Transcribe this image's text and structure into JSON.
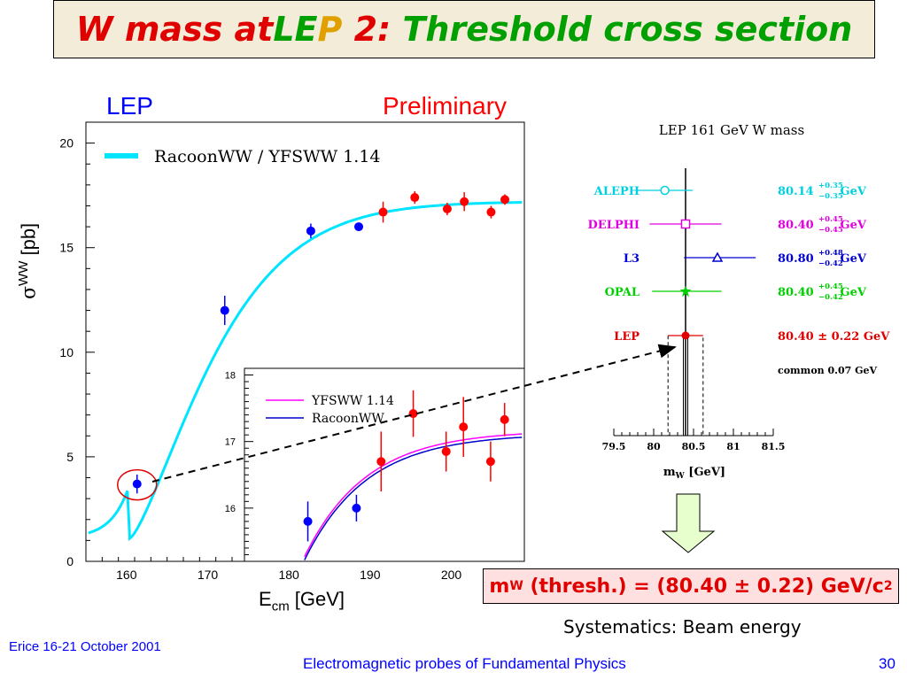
{
  "slide": {
    "title_parts": [
      {
        "text": "W mass at ",
        "color": "red"
      },
      {
        "text": "LE",
        "color": "green"
      },
      {
        "text": "P",
        "color": "orange"
      },
      {
        "text": " 2: ",
        "color": "red"
      },
      {
        "text": "Threshold cross section",
        "color": "green"
      }
    ],
    "label_lep": "LEP",
    "label_preliminary": "Preliminary",
    "result_lhs": "m",
    "result_sub": "W",
    "result_rhs": " (thresh.) = (80.40 ± 0.22) GeV/c",
    "result_sup": "2",
    "systematics": "Systematics: Beam energy",
    "footer_left": "Erice 16-21 October 2001",
    "footer_mid": "Electromagnetic probes of Fundamental Physics",
    "footer_right": "30"
  },
  "chart_data": [
    {
      "type": "scatter",
      "name": "main-cross-section",
      "xlabel_main": "E",
      "xlabel_sub": "cm",
      "xlabel_unit": " [GeV]",
      "ylabel_main": "σ",
      "ylabel_sup": "WW",
      "ylabel_unit": " [pb]",
      "xlim": [
        155,
        209
      ],
      "ylim": [
        0,
        21
      ],
      "x_ticks": [
        160,
        170,
        180,
        190,
        200
      ],
      "y_ticks": [
        0,
        5,
        10,
        15,
        20
      ],
      "legend_label": "RacoonWW / YFSWW 1.14",
      "curve_color": "#00e5ff",
      "points": [
        {
          "x": 161.3,
          "y": 3.7,
          "err": 0.45,
          "color": "#0000ff"
        },
        {
          "x": 172.1,
          "y": 12.0,
          "err": 0.7,
          "color": "#0000ff"
        },
        {
          "x": 182.7,
          "y": 15.8,
          "err": 0.35,
          "color": "#0000ff"
        },
        {
          "x": 188.6,
          "y": 16.0,
          "err": 0.2,
          "color": "#0000ff"
        },
        {
          "x": 191.6,
          "y": 16.7,
          "err": 0.5,
          "color": "#ff0000"
        },
        {
          "x": 195.5,
          "y": 17.4,
          "err": 0.3,
          "color": "#ff0000"
        },
        {
          "x": 199.5,
          "y": 16.85,
          "err": 0.3,
          "color": "#ff0000"
        },
        {
          "x": 201.6,
          "y": 17.2,
          "err": 0.45,
          "color": "#ff0000"
        },
        {
          "x": 204.9,
          "y": 16.7,
          "err": 0.3,
          "color": "#ff0000"
        },
        {
          "x": 206.6,
          "y": 17.3,
          "err": 0.25,
          "color": "#ff0000"
        }
      ]
    },
    {
      "type": "scatter",
      "name": "inset-cross-section",
      "xlim": [
        175,
        209
      ],
      "ylim": [
        15.2,
        18.1
      ],
      "y_ticks": [
        16,
        17,
        18
      ],
      "legend": [
        {
          "name": "YFSWW 1.14",
          "color": "#ff00ff"
        },
        {
          "name": "RacoonWW",
          "color": "#0000cc"
        }
      ],
      "points": [
        {
          "x": 182.7,
          "y": 15.8,
          "err": 0.3,
          "color": "#0000ff"
        },
        {
          "x": 188.6,
          "y": 16.0,
          "err": 0.2,
          "color": "#0000ff"
        },
        {
          "x": 191.6,
          "y": 16.7,
          "err": 0.45,
          "color": "#ff0000"
        },
        {
          "x": 195.5,
          "y": 17.42,
          "err": 0.35,
          "color": "#ff0000"
        },
        {
          "x": 199.5,
          "y": 16.85,
          "err": 0.3,
          "color": "#ff0000"
        },
        {
          "x": 201.6,
          "y": 17.22,
          "err": 0.45,
          "color": "#ff0000"
        },
        {
          "x": 204.9,
          "y": 16.7,
          "err": 0.3,
          "color": "#ff0000"
        },
        {
          "x": 206.6,
          "y": 17.33,
          "err": 0.25,
          "color": "#ff0000"
        }
      ]
    },
    {
      "type": "scatter",
      "name": "lep-161-w-mass",
      "title": "LEP 161 GeV W mass",
      "xlabel_main": "m",
      "xlabel_sub": "W",
      "xlabel_unit": " [GeV]",
      "xlim": [
        79.5,
        81.5
      ],
      "x_ticks": [
        "79.5",
        "80",
        "80.5",
        "81",
        "81.5"
      ],
      "central": 80.4,
      "band": [
        80.18,
        80.62
      ],
      "common_error": "common  0.07 GeV",
      "experiments": [
        {
          "name": "ALEPH",
          "value": 80.14,
          "err_plus": 0.35,
          "err_minus": 0.35,
          "color": "#00d0e0",
          "marker": "circle",
          "label": "80.14",
          "sup": "+0.35",
          "sub": "−0.35",
          "unit": "GeV"
        },
        {
          "name": "DELPHI",
          "value": 80.4,
          "err_plus": 0.45,
          "err_minus": 0.45,
          "color": "#e000e0",
          "marker": "square",
          "label": "80.40",
          "sup": "+0.45",
          "sub": "−0.45",
          "unit": "GeV"
        },
        {
          "name": "L3",
          "value": 80.8,
          "err_plus": 0.48,
          "err_minus": 0.42,
          "color": "#0000d0",
          "marker": "triangle",
          "label": "80.80",
          "sup": "+0.48",
          "sub": "−0.42",
          "unit": "GeV"
        },
        {
          "name": "OPAL",
          "value": 80.4,
          "err_plus": 0.45,
          "err_minus": 0.42,
          "color": "#00d000",
          "marker": "star",
          "label": "80.40",
          "sup": "+0.45",
          "sub": "−0.42",
          "unit": "GeV"
        },
        {
          "name": "LEP",
          "value": 80.4,
          "err_plus": 0.22,
          "err_minus": 0.22,
          "color": "#e00000",
          "marker": "dot",
          "label": "80.40 ± 0.22 GeV",
          "sup": "",
          "sub": "",
          "unit": ""
        }
      ]
    }
  ]
}
